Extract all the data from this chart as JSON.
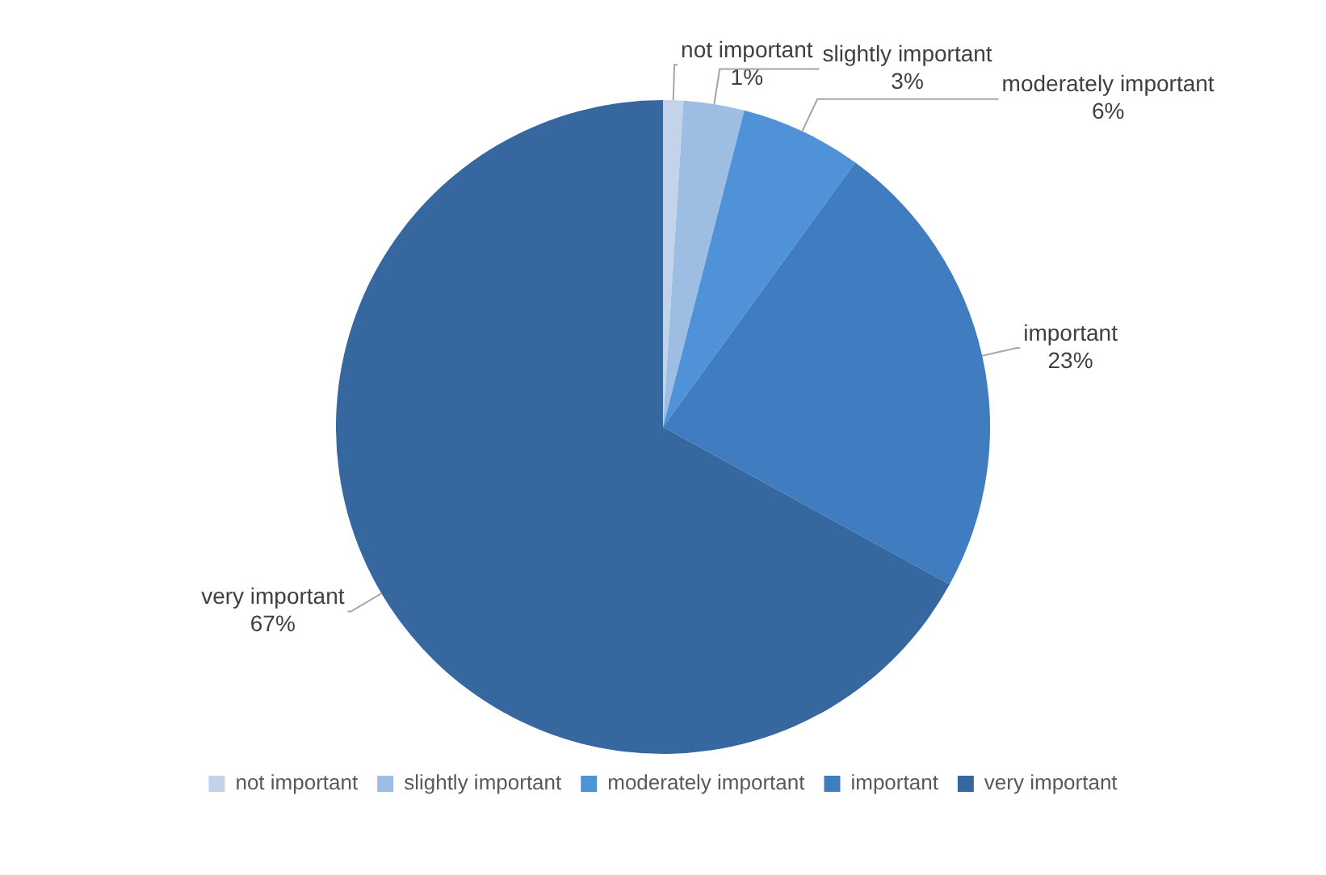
{
  "chart_data": {
    "type": "pie",
    "categories": [
      "not important",
      "slightly important",
      "moderately important",
      "important",
      "very important"
    ],
    "values": [
      1,
      3,
      6,
      23,
      67
    ],
    "colors": [
      "#c3d3ea",
      "#9dbde3",
      "#4f92d8",
      "#3f7dc0",
      "#36679f"
    ],
    "value_labels": [
      "1%",
      "3%",
      "6%",
      "23%",
      "67%"
    ],
    "legend": "bottom"
  }
}
